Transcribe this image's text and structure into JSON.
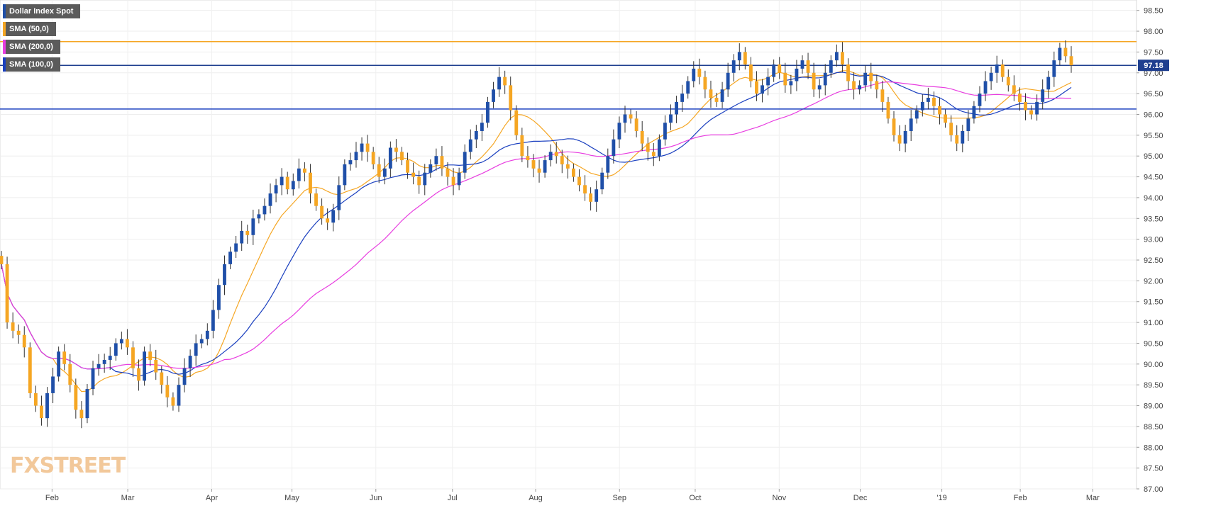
{
  "legend": {
    "items": [
      {
        "label": "Dollar Index Spot",
        "color": "#1f4fa8"
      },
      {
        "label": "SMA (50,0)",
        "color": "#f5a623"
      },
      {
        "label": "SMA (200,0)",
        "color": "#e83ee0"
      },
      {
        "label": "SMA (100,0)",
        "color": "#1a3fbf"
      }
    ]
  },
  "watermark": {
    "text": "FXSTREET"
  },
  "chart_data": {
    "type": "candlestick",
    "ylim": [
      87.0,
      98.75
    ],
    "y_ticks": [
      "98.50",
      "98.00",
      "97.50",
      "97.00",
      "96.50",
      "96.00",
      "95.50",
      "95.00",
      "94.50",
      "94.00",
      "93.50",
      "93.00",
      "92.50",
      "92.00",
      "91.50",
      "91.00",
      "90.50",
      "90.00",
      "89.50",
      "89.00",
      "88.50",
      "88.00",
      "87.50",
      "87.00"
    ],
    "x_ticks": [
      {
        "label": "Feb",
        "pos": 0.0458
      },
      {
        "label": "Mar",
        "pos": 0.1124
      },
      {
        "label": "Apr",
        "pos": 0.1863
      },
      {
        "label": "May",
        "pos": 0.2569
      },
      {
        "label": "Jun",
        "pos": 0.3307
      },
      {
        "label": "Jul",
        "pos": 0.3981
      },
      {
        "label": "Aug",
        "pos": 0.4713
      },
      {
        "label": "Sep",
        "pos": 0.5451
      },
      {
        "label": "Oct",
        "pos": 0.6117
      },
      {
        "label": "Nov",
        "pos": 0.6856
      },
      {
        "label": "Dec",
        "pos": 0.7569
      },
      {
        "label": "'19",
        "pos": 0.8287
      },
      {
        "label": "Feb",
        "pos": 0.8977
      },
      {
        "label": "Mar",
        "pos": 0.9615
      }
    ],
    "last_price_label": "97.18",
    "last_price": 97.18,
    "hlines": [
      {
        "value": 97.75,
        "color": "#f5a623"
      },
      {
        "value": 97.18,
        "color": "#1f3f8f"
      },
      {
        "value": 96.13,
        "color": "#1a3fbf"
      }
    ],
    "close": [
      92.4,
      91.0,
      90.8,
      90.7,
      90.4,
      89.3,
      89.0,
      88.7,
      89.3,
      89.7,
      90.3,
      90.0,
      89.5,
      88.9,
      88.7,
      89.4,
      89.9,
      90.0,
      90.1,
      90.2,
      90.5,
      90.6,
      90.4,
      89.9,
      89.6,
      90.3,
      90.1,
      89.8,
      89.5,
      89.2,
      89.0,
      89.5,
      89.9,
      90.2,
      90.5,
      90.6,
      90.8,
      91.3,
      91.9,
      92.4,
      92.7,
      92.9,
      93.2,
      93.1,
      93.5,
      93.6,
      93.8,
      94.1,
      94.3,
      94.5,
      94.2,
      94.4,
      94.7,
      94.6,
      94.1,
      93.8,
      93.5,
      93.4,
      93.7,
      94.3,
      94.8,
      94.9,
      95.1,
      95.3,
      95.1,
      94.8,
      94.5,
      94.7,
      95.2,
      95.1,
      94.9,
      94.6,
      94.5,
      94.3,
      94.6,
      94.8,
      95.0,
      94.7,
      94.5,
      94.3,
      94.6,
      95.1,
      95.4,
      95.6,
      95.8,
      96.3,
      96.6,
      96.9,
      96.7,
      96.1,
      95.5,
      95.0,
      94.9,
      94.7,
      94.6,
      94.9,
      95.1,
      95.0,
      94.8,
      94.7,
      94.5,
      94.3,
      94.1,
      93.9,
      94.2,
      94.6,
      95.0,
      95.4,
      95.8,
      96.0,
      95.9,
      95.6,
      95.3,
      95.1,
      95.0,
      95.4,
      95.8,
      96.0,
      96.3,
      96.5,
      96.8,
      97.1,
      96.9,
      96.6,
      96.4,
      96.3,
      96.6,
      97.0,
      97.3,
      97.5,
      97.2,
      96.8,
      96.5,
      96.7,
      96.9,
      97.2,
      97.0,
      96.7,
      96.8,
      97.1,
      97.3,
      97.0,
      96.6,
      96.7,
      97.0,
      97.3,
      97.5,
      97.2,
      96.8,
      96.6,
      96.7,
      97.0,
      96.8,
      96.6,
      96.3,
      95.9,
      95.5,
      95.3,
      95.6,
      95.9,
      96.1,
      96.3,
      96.4,
      96.2,
      96.0,
      95.8,
      95.5,
      95.3,
      95.6,
      95.9,
      96.2,
      96.5,
      96.8,
      97.0,
      97.2,
      96.9,
      96.7,
      96.5,
      96.3,
      96.1,
      96.0,
      96.3,
      96.6,
      96.9,
      97.3,
      97.6,
      97.4,
      97.18
    ]
  }
}
